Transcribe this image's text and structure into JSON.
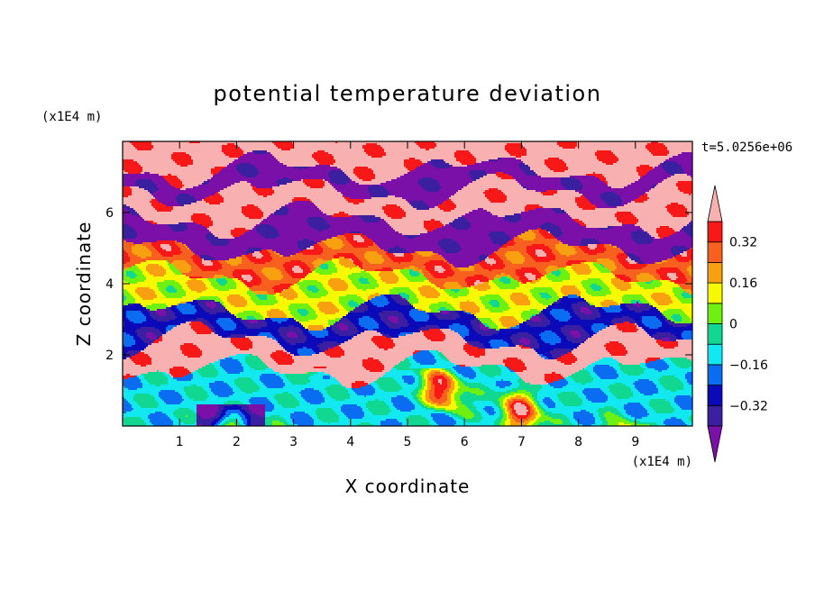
{
  "chart_data": {
    "type": "heatmap",
    "title": "potential temperature deviation",
    "xlabel": "X coordinate",
    "ylabel": "Z coordinate",
    "x_unit": "(x1E4 m)",
    "y_unit": "(x1E4 m)",
    "time_label": "t=5.0256e+06",
    "xlim": [
      0,
      10
    ],
    "ylim": [
      0,
      8
    ],
    "x_ticks": [
      1,
      2,
      3,
      4,
      5,
      6,
      7,
      8,
      9
    ],
    "y_ticks": [
      2,
      4,
      6
    ],
    "colorbar": {
      "levels": [
        -0.4,
        -0.32,
        -0.24,
        -0.16,
        -0.08,
        0,
        0.08,
        0.16,
        0.24,
        0.32,
        0.4
      ],
      "colors": [
        "#7a10a8",
        "#3a1fa0",
        "#0a0ab8",
        "#0a6cf0",
        "#11e8f0",
        "#10d890",
        "#6ef010",
        "#f8f800",
        "#f8a010",
        "#f86020",
        "#f81818",
        "#f8b0b0"
      ],
      "tick_labels": [
        {
          "value": 0.32,
          "label": "0.32"
        },
        {
          "value": 0.16,
          "label": "0.16"
        },
        {
          "value": 0,
          "label": "0"
        },
        {
          "value": -0.16,
          "label": "−0.16"
        },
        {
          "value": -0.32,
          "label": "−0.32"
        }
      ],
      "extend": "both"
    },
    "field_description": {
      "bands": [
        {
          "z_range": [
            7.2,
            8.0
          ],
          "value": 0.45
        },
        {
          "z_range": [
            6.6,
            7.2
          ],
          "value": -0.45
        },
        {
          "z_range": [
            5.8,
            6.6
          ],
          "value": 0.45
        },
        {
          "z_range": [
            5.0,
            5.8
          ],
          "value": -0.45
        },
        {
          "z_range": [
            4.2,
            5.0
          ],
          "value": 0.3
        },
        {
          "z_range": [
            3.2,
            4.2
          ],
          "value": 0.1
        },
        {
          "z_range": [
            2.4,
            3.2
          ],
          "value": -0.3
        },
        {
          "z_range": [
            1.6,
            2.4
          ],
          "value": 0.45
        },
        {
          "z_range": [
            0.0,
            1.6
          ],
          "value": -0.12
        }
      ]
    }
  }
}
